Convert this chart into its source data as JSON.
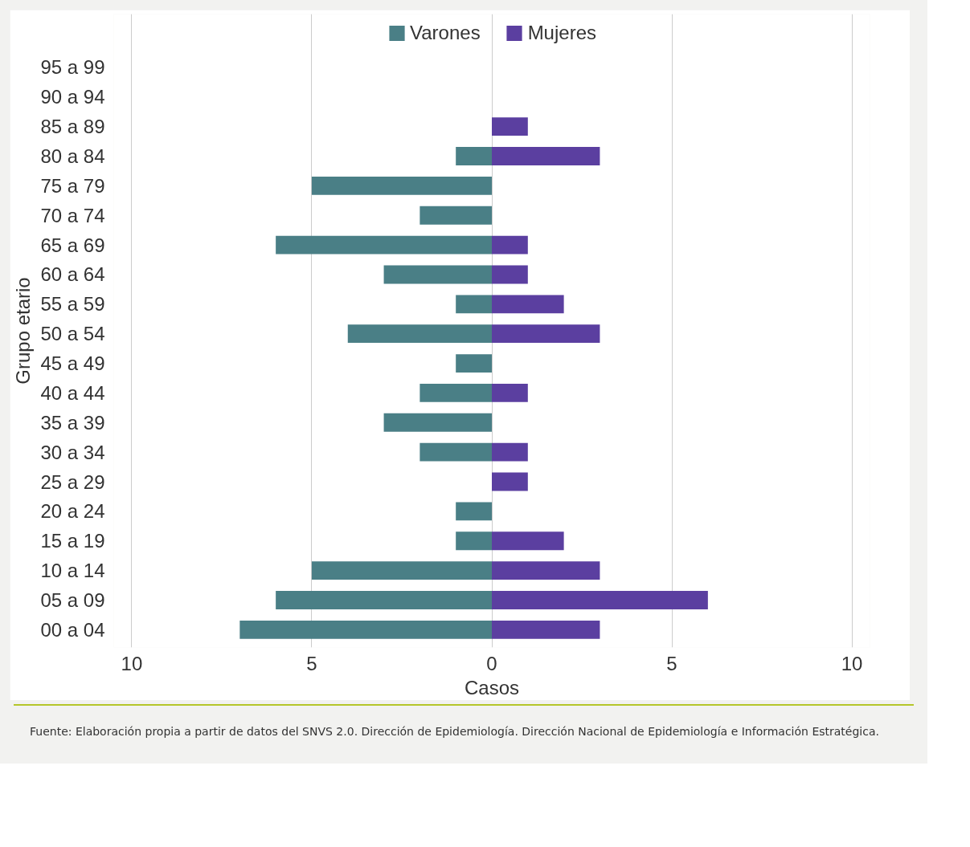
{
  "chart_data": {
    "type": "bar",
    "orientation": "horizontal",
    "stacked": true,
    "xlabel": "Casos",
    "ylabel": "Grupo etario",
    "categories": [
      "95 a 99",
      "90 a 94",
      "85 a 89",
      "80 a 84",
      "75 a 79",
      "70 a 74",
      "65 a 69",
      "60 a 64",
      "55 a 59",
      "50 a 54",
      "45 a 49",
      "40 a 44",
      "35 a 39",
      "30 a 34",
      "25 a 29",
      "20 a 24",
      "15 a 19",
      "10 a 14",
      "05 a 09",
      "00 a 04"
    ],
    "series": [
      {
        "name": "Varones",
        "color": "#4a7f86",
        "values": [
          0,
          0,
          0,
          -1,
          -5,
          -2,
          -6,
          -3,
          -1,
          -4,
          -1,
          -2,
          -3,
          -2,
          0,
          -1,
          -1,
          -5,
          -6,
          -7
        ]
      },
      {
        "name": "Mujeres",
        "color": "#5b3fa0",
        "values": [
          0,
          0,
          1,
          3,
          0,
          0,
          1,
          1,
          2,
          3,
          0,
          1,
          0,
          1,
          1,
          0,
          2,
          3,
          6,
          3
        ]
      }
    ],
    "xlim": [
      -10.5,
      10.5
    ],
    "xticks": [
      {
        "value": -10,
        "label": "10"
      },
      {
        "value": -5,
        "label": "5"
      },
      0,
      5,
      10
    ],
    "grid": "x",
    "legend": "top",
    "annotations": [
      "Fuente: Elaboración propia a partir de datos del SNVS 2.0. Dirección de Epidemiología. Dirección Nacional de Epidemiología e Información Estratégica."
    ]
  }
}
